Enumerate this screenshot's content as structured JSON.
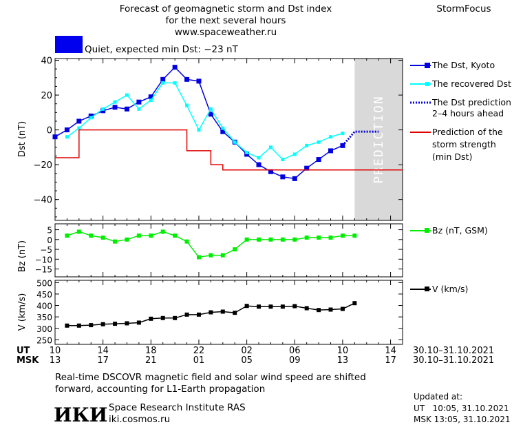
{
  "header": {
    "title_line1": "Forecast of geomagnetic storm and Dst index",
    "title_line2": "for the next several hours",
    "url": "www.spaceweather.ru",
    "brand": "StormFocus",
    "status_text": "Quiet, expected min Dst: −23 nT"
  },
  "colors": {
    "dst_kyoto": "#0000e0",
    "dst_recovered": "#00ffff",
    "dst_prediction": "#0000e0",
    "storm_strength": "#e00000",
    "bz": "#00ee00",
    "v": "#000000",
    "status_box": "#0000ee",
    "prediction_band": "#d9d9d9"
  },
  "prediction_label": "PREDICTION",
  "time_axis": {
    "ut_label": "UT",
    "msk_label": "MSK",
    "ut_ticks": [
      "10",
      "14",
      "18",
      "22",
      "02",
      "06",
      "10",
      "14"
    ],
    "msk_ticks": [
      "13",
      "17",
      "21",
      "01",
      "05",
      "09",
      "13",
      "17"
    ],
    "ut_range": "30.10–31.10.2021",
    "msk_range": "30.10–31.10.2021"
  },
  "chart_data": [
    {
      "type": "line",
      "ylabel": "Dst (nT)",
      "ylim": [
        -52,
        41
      ],
      "yticks": [
        40,
        20,
        0,
        -20,
        -40
      ],
      "xlim": [
        0,
        29
      ],
      "x_unit": "hours since 10 UT 30.10.2021",
      "series": [
        {
          "name": "The Dst, Kyoto",
          "x": [
            0,
            1,
            2,
            3,
            4,
            5,
            6,
            7,
            8,
            9,
            10,
            11,
            12,
            13,
            14,
            15,
            16,
            17,
            18,
            19,
            20,
            21,
            22,
            23,
            24
          ],
          "values": [
            -4,
            0,
            5,
            8,
            11,
            13,
            12,
            16,
            19,
            29,
            36,
            29,
            28,
            9,
            -1,
            -7,
            -14,
            -20,
            -24,
            -27,
            -28,
            -22,
            -17,
            -12,
            -9
          ]
        },
        {
          "name": "The recovered Dst",
          "x": [
            1,
            2,
            3,
            4,
            5,
            6,
            7,
            8,
            9,
            10,
            11,
            12,
            13,
            14,
            15,
            16,
            17,
            18,
            19,
            20,
            21,
            22,
            23,
            24
          ],
          "values": [
            -4,
            1,
            7,
            12,
            16,
            20,
            12,
            17,
            27,
            27,
            14,
            0,
            12,
            1,
            -7,
            -13,
            -16,
            -10,
            -17,
            -14,
            -9,
            -7,
            -4,
            -2
          ]
        },
        {
          "name": "The Dst prediction 2–4 hours ahead",
          "x": [
            24,
            25,
            26,
            27
          ],
          "values": [
            -9,
            -1,
            -1,
            -1
          ]
        },
        {
          "name": "Prediction of the storm strength (min Dst)",
          "x": [
            0,
            1,
            2,
            3,
            4,
            5,
            6,
            7,
            8,
            9,
            10,
            11,
            12,
            13,
            14,
            15,
            16,
            17,
            18,
            19,
            20,
            21,
            22,
            23,
            24,
            25,
            26,
            27,
            28,
            29
          ],
          "values": [
            -16,
            -16,
            0,
            0,
            0,
            0,
            0,
            0,
            0,
            0,
            0,
            -12,
            -12,
            -20,
            -23,
            -23,
            -23,
            -23,
            -23,
            -23,
            -23,
            -23,
            -23,
            -23,
            -23,
            -23,
            -23,
            -23,
            -23,
            -23
          ]
        }
      ],
      "legend_placement": "right"
    },
    {
      "type": "line",
      "ylabel": "Bz (nT)",
      "ylim": [
        -19,
        8
      ],
      "yticks": [
        5,
        0,
        -5,
        -10,
        -15
      ],
      "series": [
        {
          "name": "Bz (nT, GSM)",
          "x": [
            1,
            2,
            3,
            4,
            5,
            6,
            7,
            8,
            9,
            10,
            11,
            12,
            13,
            14,
            15,
            16,
            17,
            18,
            19,
            20,
            21,
            22,
            23,
            24,
            25
          ],
          "values": [
            2,
            4,
            2,
            1,
            -1,
            0,
            2,
            2,
            4,
            2,
            -1,
            -9,
            -8,
            -8,
            -5,
            0,
            0,
            0,
            0,
            0,
            1,
            1,
            1,
            2,
            2
          ]
        }
      ],
      "legend_placement": "right"
    },
    {
      "type": "line",
      "ylabel": "V (km/s)",
      "ylim": [
        230,
        510
      ],
      "yticks": [
        500,
        450,
        400,
        350,
        300,
        250
      ],
      "series": [
        {
          "name": "V (km/s)",
          "x": [
            1,
            2,
            3,
            4,
            5,
            6,
            7,
            8,
            9,
            10,
            11,
            12,
            13,
            14,
            15,
            16,
            17,
            18,
            19,
            20,
            21,
            22,
            23,
            24,
            25
          ],
          "values": [
            312,
            312,
            314,
            318,
            320,
            322,
            325,
            342,
            345,
            345,
            360,
            360,
            370,
            373,
            368,
            398,
            395,
            395,
            395,
            397,
            388,
            380,
            382,
            385,
            410
          ]
        }
      ],
      "legend_placement": "right"
    }
  ],
  "footer": {
    "note_line1": "Real-time DSCOVR magnetic field and solar wind speed are shifted",
    "note_line2": "forward, accounting for L1-Earth propagation",
    "logo_text": "ИКИ",
    "org_name": "Space Research Institute RAS",
    "org_url": "iki.cosmos.ru",
    "updated_label": "Updated at:",
    "updated_ut": "UT   10:05, 31.10.2021",
    "updated_msk": "MSK 13:05, 31.10.2021"
  }
}
